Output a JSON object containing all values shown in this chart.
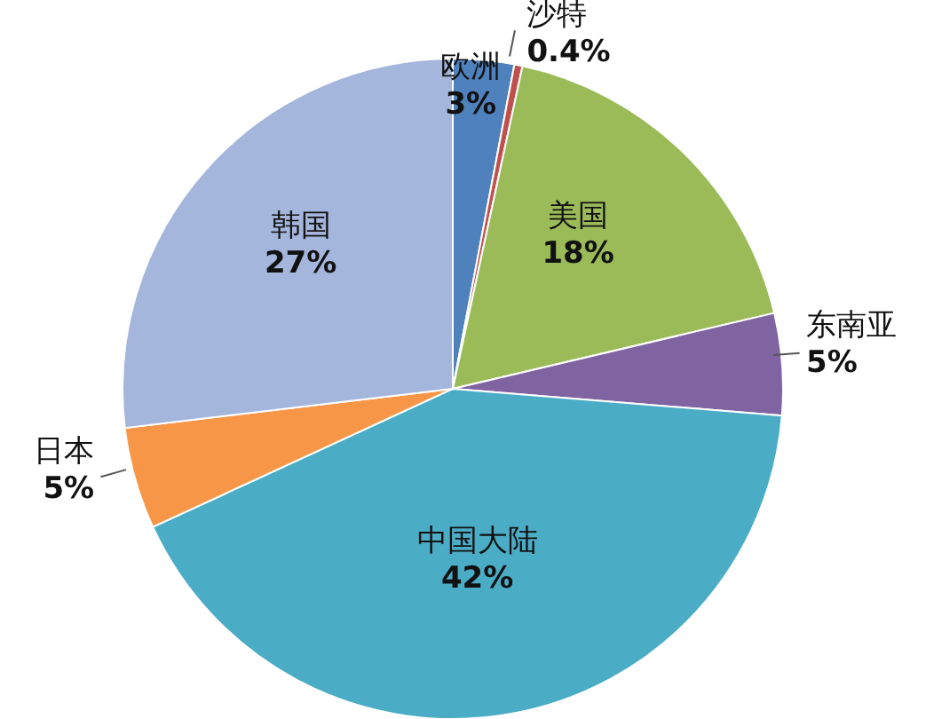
{
  "chart_data": {
    "type": "pie",
    "categories": [
      "欧洲",
      "沙特",
      "美国",
      "东南亚",
      "中国大陆",
      "日本",
      "韩国"
    ],
    "values": [
      3,
      0.4,
      18,
      5,
      42,
      5,
      27
    ],
    "value_labels": [
      "3%",
      "0.4%",
      "18%",
      "5%",
      "42%",
      "5%",
      "27%"
    ],
    "colors": [
      "#4f81bd",
      "#c0504d",
      "#9bbb59",
      "#8064a2",
      "#4bacc6",
      "#f79646",
      "#a5b6dc"
    ]
  }
}
